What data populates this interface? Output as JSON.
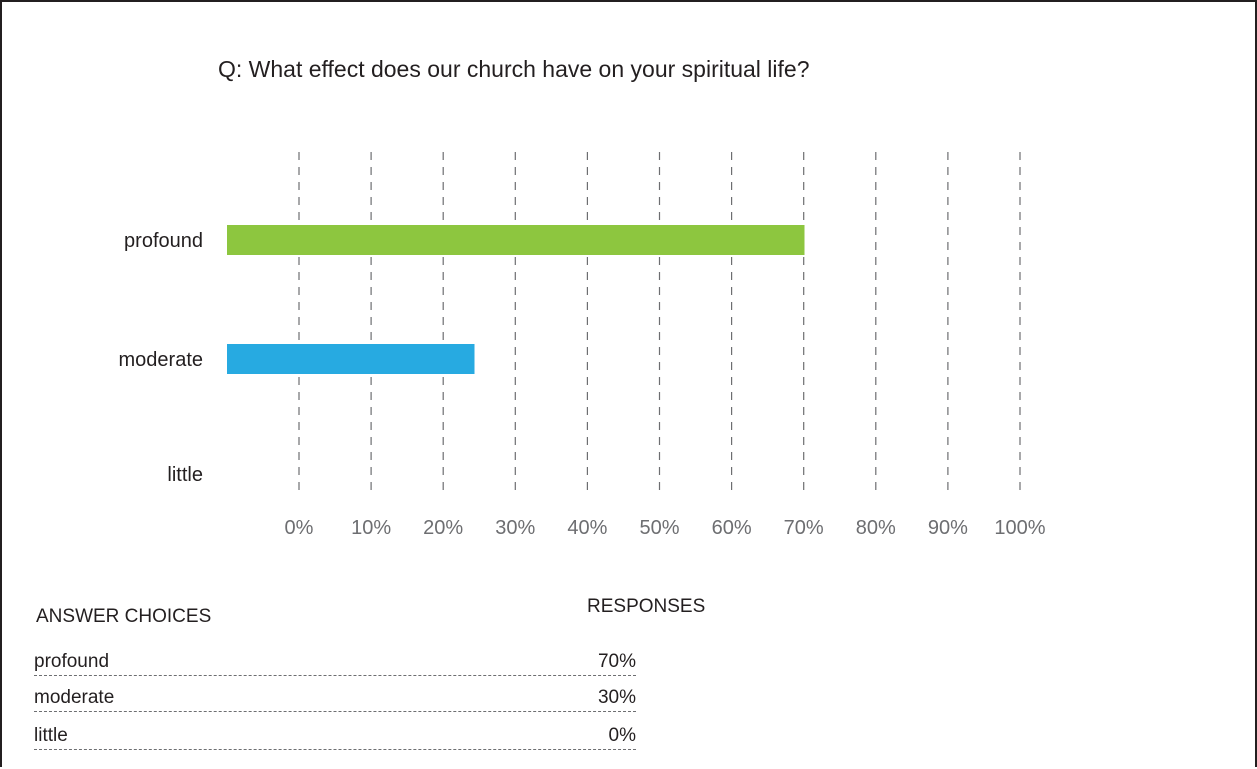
{
  "title": "Q: What effect does our church have on your spiritual life?",
  "chart_data": {
    "type": "bar",
    "orientation": "horizontal",
    "categories": [
      "profound",
      "moderate",
      "little"
    ],
    "values": [
      70,
      30,
      0
    ],
    "colors": [
      "#8dc63f",
      "#27aae1",
      "#27aae1"
    ],
    "xlim": [
      0,
      100
    ],
    "xticks": [
      "0%",
      "10%",
      "20%",
      "30%",
      "40%",
      "50%",
      "60%",
      "70%",
      "80%",
      "90%",
      "100%"
    ],
    "grid": true,
    "grid_style": "dashed"
  },
  "table": {
    "header_choices": "ANSWER CHOICES",
    "header_responses": "RESPONSES",
    "rows": [
      {
        "choice": "profound",
        "response": "70%"
      },
      {
        "choice": "moderate",
        "response": "30%"
      },
      {
        "choice": "little",
        "response": "0%"
      }
    ]
  }
}
